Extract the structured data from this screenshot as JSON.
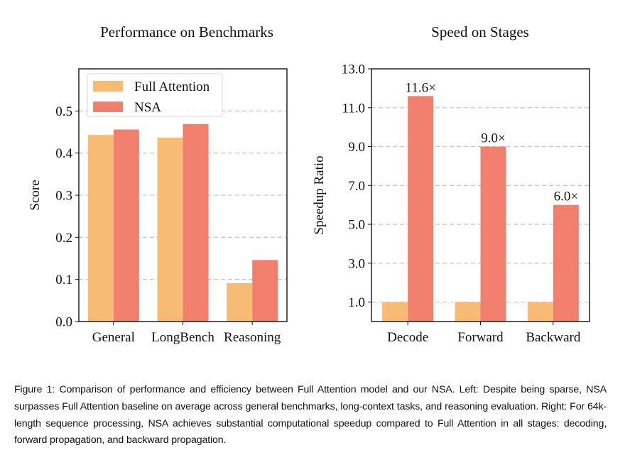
{
  "chart_data": [
    {
      "type": "bar",
      "title": "Performance on Benchmarks",
      "xlabel": "",
      "ylabel": "Score",
      "categories": [
        "General",
        "LongBench",
        "Reasoning"
      ],
      "series": [
        {
          "name": "Full Attention",
          "color": "#F7BB76",
          "values": [
            0.443,
            0.437,
            0.091
          ]
        },
        {
          "name": "NSA",
          "color": "#F07F6E",
          "values": [
            0.456,
            0.469,
            0.146
          ]
        }
      ],
      "ylim": [
        0,
        0.6
      ],
      "yticks": [
        0.0,
        0.1,
        0.2,
        0.3,
        0.4,
        0.5
      ],
      "ytick_labels": [
        "0.0",
        "0.1",
        "0.2",
        "0.3",
        "0.4",
        "0.5"
      ],
      "grid": "y-dashed",
      "legend": {
        "placement": "top-left",
        "entries": [
          "Full Attention",
          "NSA"
        ]
      }
    },
    {
      "type": "bar",
      "title": "Speed on Stages",
      "xlabel": "",
      "ylabel": "Speedup Ratio",
      "categories": [
        "Decode",
        "Forward",
        "Backward"
      ],
      "series": [
        {
          "name": "Full Attention",
          "color": "#F7BB76",
          "values": [
            1.0,
            1.0,
            1.0
          ]
        },
        {
          "name": "NSA",
          "color": "#F07F6E",
          "values": [
            11.6,
            9.0,
            6.0
          ]
        }
      ],
      "annotations": [
        "11.6×",
        "9.0×",
        "6.0×"
      ],
      "ylim": [
        0,
        13
      ],
      "yticks": [
        1.0,
        3.0,
        5.0,
        7.0,
        9.0,
        11.0,
        13.0
      ],
      "ytick_labels": [
        "1.0",
        "3.0",
        "5.0",
        "7.0",
        "9.0",
        "11.0",
        "13.0"
      ],
      "grid": "y-dashed",
      "legend": null
    }
  ],
  "caption": "Figure 1: Comparison of performance and efficiency between Full Attention model and our NSA. Left: Despite being sparse, NSA surpasses Full Attention baseline on average across general benchmarks, long-context tasks, and reasoning evaluation. Right: For 64k-length sequence processing, NSA achieves substantial computational speedup compared to Full Attention in all stages: decoding, forward propagation, and backward propagation."
}
